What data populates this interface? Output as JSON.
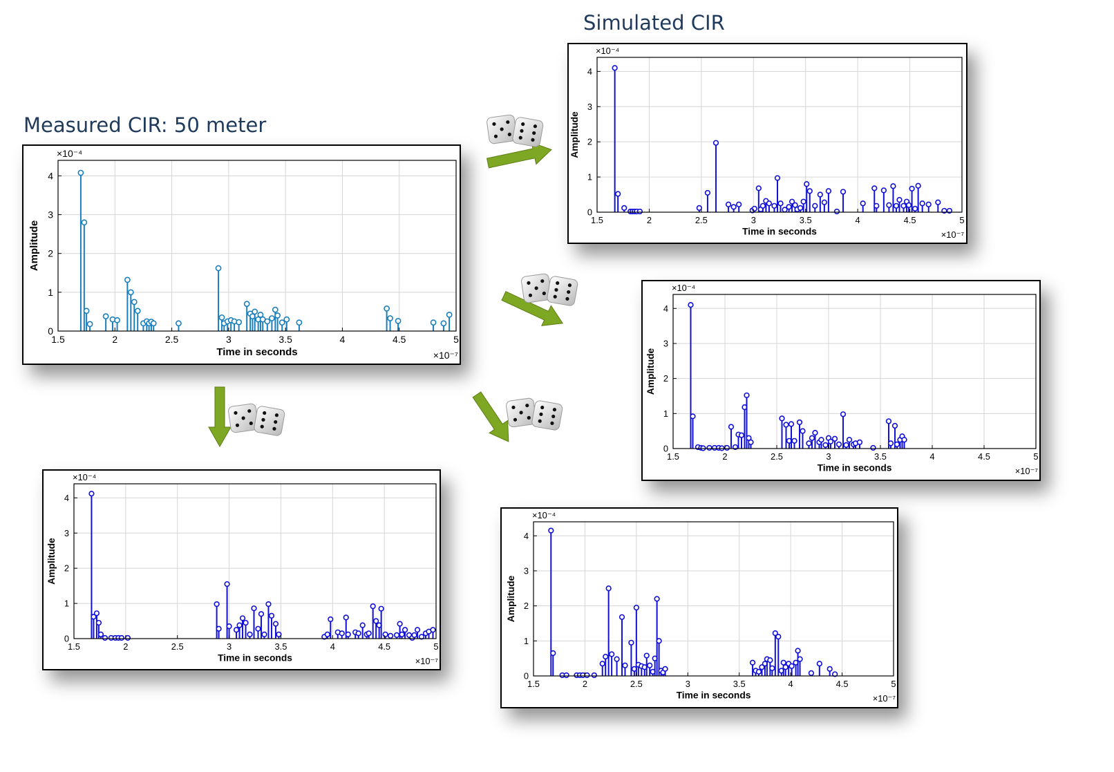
{
  "titles": {
    "measured": "Measured CIR: 50 meter",
    "simulated": "Simulated CIR"
  },
  "colors": {
    "title_text": "#1f3a5a",
    "measured_series": "#1a7fbf",
    "simulated_series": "#1010d8",
    "grid": "#d5d5d5",
    "arrow": "#7ea723"
  },
  "icons": [
    "dice-icon",
    "arrow-icon"
  ],
  "chart_data": [
    {
      "type": "stem",
      "role": "measured",
      "xlabel": "Time in seconds",
      "ylabel": "Amplitude",
      "x_exponent_label": "×10⁻⁷",
      "y_exponent_label": "×10⁻⁴",
      "xlim": [
        1.5,
        5
      ],
      "ylim": [
        0,
        4.4
      ],
      "xticks": [
        1.5,
        2,
        2.5,
        3,
        3.5,
        4,
        4.5,
        5
      ],
      "yticks": [
        0,
        1,
        2,
        3,
        4
      ],
      "grid": true,
      "series": [
        {
          "x": [
            1.7,
            1.73,
            1.75,
            1.78,
            1.92,
            1.98,
            2.02,
            2.11,
            2.14,
            2.17,
            2.2,
            2.25,
            2.28,
            2.3,
            2.32,
            2.34,
            2.56,
            2.91,
            2.94,
            2.96,
            2.99,
            3.02,
            3.05,
            3.09,
            3.16,
            3.19,
            3.21,
            3.23,
            3.26,
            3.28,
            3.3,
            3.34,
            3.38,
            3.41,
            3.43,
            3.47,
            3.51,
            3.62,
            4.39,
            4.42,
            4.49,
            4.8,
            4.89,
            4.94
          ],
          "y": [
            4.08,
            2.8,
            0.52,
            0.18,
            0.38,
            0.3,
            0.28,
            1.32,
            1.0,
            0.75,
            0.52,
            0.2,
            0.25,
            0.2,
            0.24,
            0.2,
            0.2,
            1.62,
            0.35,
            0.2,
            0.25,
            0.28,
            0.25,
            0.23,
            0.7,
            0.45,
            0.38,
            0.5,
            0.3,
            0.42,
            0.3,
            0.25,
            0.33,
            0.55,
            0.4,
            0.22,
            0.3,
            0.22,
            0.58,
            0.33,
            0.26,
            0.22,
            0.2,
            0.42
          ]
        }
      ]
    },
    {
      "type": "stem",
      "role": "simulated",
      "xlabel": "Time in seconds",
      "ylabel": "Amplitude",
      "x_exponent_label": "×10⁻⁷",
      "y_exponent_label": "×10⁻⁴",
      "xlim": [
        1.5,
        5
      ],
      "ylim": [
        0,
        4.4
      ],
      "xticks": [
        1.5,
        2,
        2.5,
        3,
        3.5,
        4,
        4.5,
        5
      ],
      "yticks": [
        0,
        1,
        2,
        3,
        4
      ],
      "grid": true,
      "series": [
        {
          "x": [
            1.67,
            1.7,
            1.76,
            1.82,
            1.84,
            1.86,
            1.88,
            1.91,
            2.48,
            2.56,
            2.64,
            2.76,
            2.81,
            2.86,
            2.99,
            3.01,
            3.05,
            3.07,
            3.09,
            3.12,
            3.15,
            3.2,
            3.23,
            3.26,
            3.3,
            3.34,
            3.37,
            3.4,
            3.42,
            3.45,
            3.48,
            3.51,
            3.54,
            3.59,
            3.64,
            3.68,
            3.72,
            3.8,
            3.86,
            4.05,
            4.16,
            4.18,
            4.25,
            4.3,
            4.34,
            4.37,
            4.4,
            4.44,
            4.47,
            4.49,
            4.52,
            4.55,
            4.58,
            4.62,
            4.68,
            4.77,
            4.83,
            4.88
          ],
          "y": [
            4.1,
            0.52,
            0.12,
            0.02,
            0.02,
            0.02,
            0.02,
            0.02,
            0.12,
            0.55,
            1.97,
            0.22,
            0.15,
            0.22,
            0.05,
            0.1,
            0.68,
            0.08,
            0.18,
            0.32,
            0.25,
            0.18,
            0.97,
            0.25,
            0.07,
            0.15,
            0.3,
            0.2,
            0.08,
            0.12,
            0.3,
            0.8,
            0.6,
            0.18,
            0.5,
            0.28,
            0.6,
            0.02,
            0.58,
            0.25,
            0.68,
            0.18,
            0.62,
            0.2,
            0.74,
            0.18,
            0.35,
            0.18,
            0.3,
            0.2,
            0.67,
            0.1,
            0.75,
            0.25,
            0.22,
            0.28,
            0.04,
            0.04
          ]
        }
      ]
    },
    {
      "type": "stem",
      "role": "simulated",
      "xlabel": "Time in seconds",
      "ylabel": "Amplitude",
      "x_exponent_label": "×10⁻⁷",
      "y_exponent_label": "×10⁻⁴",
      "xlim": [
        1.5,
        5
      ],
      "ylim": [
        0,
        4.4
      ],
      "xticks": [
        1.5,
        2,
        2.5,
        3,
        3.5,
        4,
        4.5,
        5
      ],
      "yticks": [
        0,
        1,
        2,
        3,
        4
      ],
      "grid": true,
      "series": [
        {
          "x": [
            1.67,
            1.69,
            1.74,
            1.77,
            1.79,
            1.85,
            1.9,
            1.94,
            1.97,
            2.02,
            2.06,
            2.1,
            2.13,
            2.16,
            2.19,
            2.21,
            2.23,
            2.25,
            2.55,
            2.59,
            2.62,
            2.64,
            2.67,
            2.72,
            2.75,
            2.81,
            2.84,
            2.87,
            2.91,
            2.93,
            2.97,
            3.0,
            3.02,
            3.06,
            3.1,
            3.14,
            3.17,
            3.2,
            3.24,
            3.26,
            3.3,
            3.43,
            3.58,
            3.6,
            3.64,
            3.66,
            3.69,
            3.71,
            3.73
          ],
          "y": [
            4.1,
            0.92,
            0.04,
            0.02,
            0.01,
            0.02,
            0.02,
            0.02,
            0.01,
            0.02,
            0.62,
            0.04,
            0.4,
            0.38,
            1.18,
            1.52,
            0.3,
            0.18,
            0.86,
            0.68,
            0.22,
            0.7,
            0.22,
            0.75,
            0.5,
            0.15,
            0.3,
            0.45,
            0.18,
            0.25,
            0.1,
            0.3,
            0.2,
            0.28,
            0.12,
            0.98,
            0.1,
            0.25,
            0.12,
            0.15,
            0.18,
            0.02,
            0.78,
            0.15,
            0.65,
            0.12,
            0.25,
            0.35,
            0.25
          ]
        }
      ]
    },
    {
      "type": "stem",
      "role": "simulated",
      "xlabel": "Time in seconds",
      "ylabel": "Amplitude",
      "x_exponent_label": "×10⁻⁷",
      "y_exponent_label": "×10⁻⁴",
      "xlim": [
        1.5,
        5
      ],
      "ylim": [
        0,
        4.4
      ],
      "xticks": [
        1.5,
        2,
        2.5,
        3,
        3.5,
        4,
        4.5,
        5
      ],
      "yticks": [
        0,
        1,
        2,
        3,
        4
      ],
      "grid": true,
      "series": [
        {
          "x": [
            1.67,
            1.69,
            1.72,
            1.74,
            1.76,
            1.8,
            1.86,
            1.9,
            1.93,
            1.96,
            2.02,
            2.88,
            2.9,
            2.98,
            3.0,
            3.07,
            3.1,
            3.13,
            3.16,
            3.2,
            3.24,
            3.28,
            3.31,
            3.34,
            3.38,
            3.41,
            3.45,
            3.48,
            3.92,
            3.95,
            3.98,
            4.05,
            4.09,
            4.13,
            4.15,
            4.22,
            4.25,
            4.29,
            4.33,
            4.35,
            4.39,
            4.42,
            4.45,
            4.47,
            4.51,
            4.56,
            4.62,
            4.65,
            4.67,
            4.7,
            4.74,
            4.77,
            4.79,
            4.82,
            4.86,
            4.9,
            4.93,
            4.97
          ],
          "y": [
            4.12,
            0.62,
            0.72,
            0.45,
            0.12,
            0.02,
            0.02,
            0.02,
            0.02,
            0.02,
            0.02,
            0.98,
            0.28,
            1.55,
            0.35,
            0.25,
            0.38,
            0.58,
            0.45,
            0.12,
            0.86,
            0.28,
            0.7,
            0.12,
            0.98,
            0.65,
            0.42,
            0.12,
            0.05,
            0.12,
            0.55,
            0.18,
            0.15,
            0.6,
            0.12,
            0.18,
            0.15,
            0.38,
            0.12,
            0.15,
            0.92,
            0.5,
            0.38,
            0.85,
            0.12,
            0.08,
            0.1,
            0.42,
            0.12,
            0.25,
            0.1,
            0.02,
            0.1,
            0.25,
            0.05,
            0.15,
            0.2,
            0.25
          ]
        }
      ]
    },
    {
      "type": "stem",
      "role": "simulated",
      "xlabel": "Time in seconds",
      "ylabel": "Amplitude",
      "x_exponent_label": "×10⁻⁷",
      "y_exponent_label": "×10⁻⁴",
      "xlim": [
        1.5,
        5
      ],
      "ylim": [
        0,
        4.4
      ],
      "xticks": [
        1.5,
        2,
        2.5,
        3,
        3.5,
        4,
        4.5,
        5
      ],
      "yticks": [
        0,
        1,
        2,
        3,
        4
      ],
      "grid": true,
      "series": [
        {
          "x": [
            1.67,
            1.69,
            1.78,
            1.82,
            1.92,
            1.95,
            1.98,
            2.02,
            2.09,
            2.17,
            2.2,
            2.23,
            2.26,
            2.31,
            2.36,
            2.39,
            2.45,
            2.48,
            2.5,
            2.52,
            2.55,
            2.58,
            2.6,
            2.63,
            2.66,
            2.68,
            2.7,
            2.72,
            2.74,
            2.76,
            2.78,
            3.63,
            3.66,
            3.69,
            3.72,
            3.75,
            3.77,
            3.8,
            3.82,
            3.85,
            3.88,
            3.91,
            3.93,
            3.95,
            3.98,
            4.01,
            4.05,
            4.07,
            4.09,
            4.2,
            4.28,
            4.38,
            4.43
          ],
          "y": [
            4.15,
            0.65,
            0.02,
            0.02,
            0.02,
            0.02,
            0.02,
            0.02,
            0.02,
            0.35,
            0.55,
            2.5,
            0.62,
            0.48,
            1.68,
            0.3,
            0.95,
            0.2,
            1.95,
            0.32,
            0.28,
            0.25,
            0.58,
            0.3,
            0.12,
            0.5,
            2.2,
            1.0,
            0.15,
            0.1,
            0.2,
            0.38,
            0.15,
            0.12,
            0.25,
            0.35,
            0.48,
            0.45,
            0.22,
            1.22,
            1.12,
            0.15,
            0.38,
            0.25,
            0.35,
            0.28,
            0.38,
            0.72,
            0.48,
            0.08,
            0.35,
            0.2,
            0.05
          ]
        }
      ]
    }
  ]
}
